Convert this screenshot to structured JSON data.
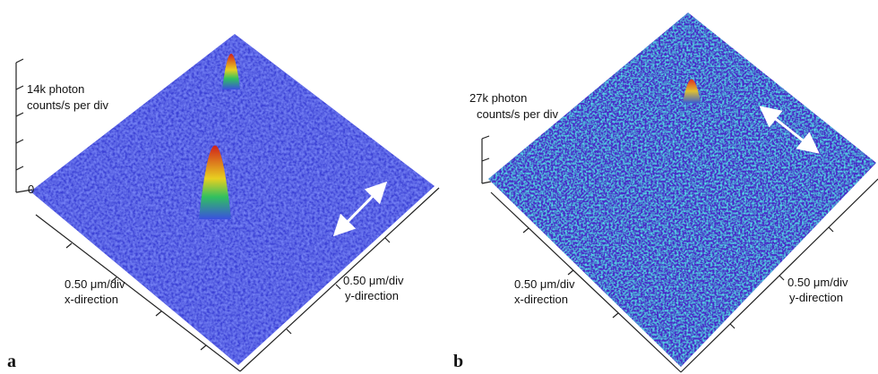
{
  "panels": [
    {
      "label": "a",
      "z_label": [
        "14k photon",
        "counts/s per div"
      ],
      "z_zero": "0",
      "x_axis": [
        "0.50 μm/div",
        "x-direction"
      ],
      "y_axis": [
        "0.50 μm/div",
        "y-direction"
      ]
    },
    {
      "label": "b",
      "z_label": [
        "27k photon",
        "counts/s per div"
      ],
      "x_axis": [
        "0.50 μm/div",
        "x-direction"
      ],
      "y_axis": [
        "0.50 μm/div",
        "y-direction"
      ]
    }
  ]
}
